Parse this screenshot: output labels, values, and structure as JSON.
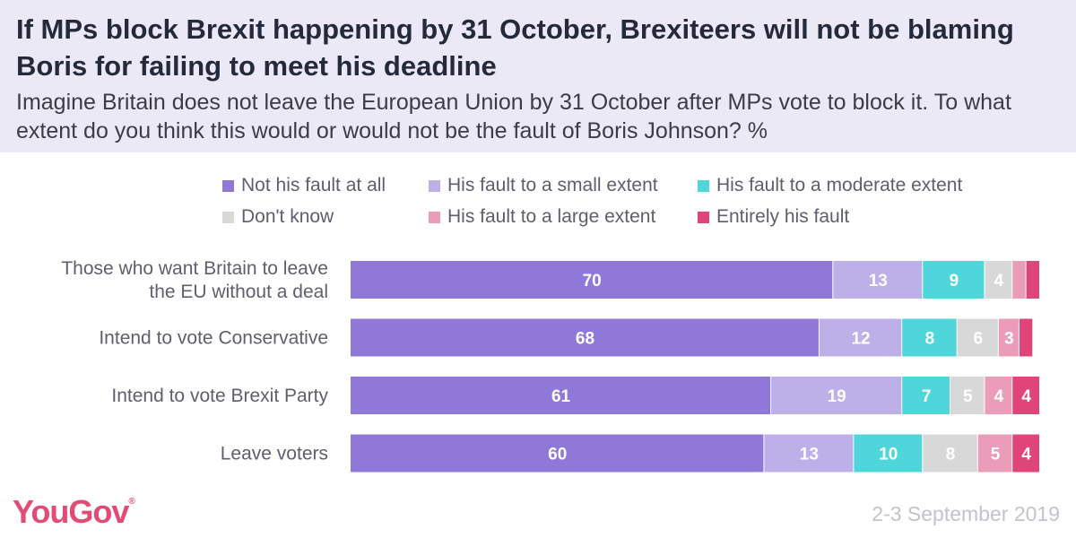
{
  "title": "If MPs block Brexit happening by 31 October, Brexiteers will not be blaming Boris for failing to meet his deadline",
  "subtitle": "Imagine Britain does not leave the European Union by 31 October after MPs vote to block it. To what extent do you think this would or would not be the fault of Boris Johnson? %",
  "logo": "YouGov",
  "logo_mark": "®",
  "date": "2-3 September 2019",
  "chart_data": {
    "type": "bar",
    "orientation": "horizontal",
    "stacked": true,
    "legend_position": "top",
    "xlim": [
      0,
      100
    ],
    "categories": [
      [
        "Those who want Britain to leave",
        "the EU without a deal"
      ],
      [
        "Intend to vote Conservative"
      ],
      [
        "Intend to vote Brexit Party"
      ],
      [
        "Leave voters"
      ]
    ],
    "series": [
      {
        "name": "Not his fault at all",
        "color": "#8f78d8",
        "values": [
          70,
          68,
          61,
          60
        ],
        "labels": [
          "70",
          "68",
          "61",
          "60"
        ]
      },
      {
        "name": "His fault to a small extent",
        "color": "#bdb0e9",
        "values": [
          13,
          12,
          19,
          13
        ],
        "labels": [
          "13",
          "12",
          "19",
          "13"
        ]
      },
      {
        "name": "His fault to a moderate extent",
        "color": "#4fd6da",
        "values": [
          9,
          8,
          7,
          10
        ],
        "labels": [
          "9",
          "8",
          "7",
          "10"
        ]
      },
      {
        "name": "Don't know",
        "color": "#d8d8d8",
        "values": [
          4,
          6,
          5,
          8
        ],
        "labels": [
          "4",
          "6",
          "5",
          "8"
        ]
      },
      {
        "name": "His fault to a large extent",
        "color": "#eb9cb9",
        "values": [
          2,
          3,
          4,
          5
        ],
        "labels": [
          "",
          "3",
          "4",
          "5"
        ]
      },
      {
        "name": "Entirely his fault",
        "color": "#e0457a",
        "values": [
          2,
          2,
          4,
          4
        ],
        "labels": [
          "",
          "",
          "4",
          "4"
        ]
      }
    ]
  }
}
